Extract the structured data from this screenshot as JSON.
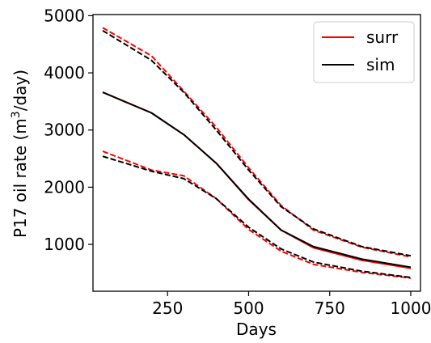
{
  "chart_data": {
    "type": "line",
    "title": "",
    "xlabel": "Days",
    "ylabel_main": "P17 oil rate (m",
    "ylabel_sup": "3",
    "ylabel_end": "/day)",
    "xlim": [
      20,
      1030
    ],
    "ylim": [
      180,
      5020
    ],
    "xticks": [
      250,
      500,
      750,
      1000
    ],
    "xtick_labels": [
      "250",
      "500",
      "750",
      "1000"
    ],
    "yticks": [
      1000,
      2000,
      3000,
      4000,
      5000
    ],
    "ytick_labels": [
      "1000",
      "2000",
      "3000",
      "4000",
      "5000"
    ],
    "grid": false,
    "legend_position": "top-right",
    "legend": [
      {
        "label": "surr",
        "color": "#ff0000"
      },
      {
        "label": "sim",
        "color": "#000000"
      }
    ],
    "series": [
      {
        "name": "surr",
        "role": "mean",
        "style": "solid",
        "color": "#ff0000",
        "x": [
          50,
          200,
          300,
          400,
          500,
          600,
          700,
          850,
          1000
        ],
        "y": [
          3660,
          3300,
          2920,
          2420,
          1780,
          1250,
          940,
          720,
          580
        ]
      },
      {
        "name": "sim",
        "role": "mean",
        "style": "solid",
        "color": "#000000",
        "x": [
          50,
          200,
          300,
          400,
          500,
          600,
          700,
          850,
          1000
        ],
        "y": [
          3660,
          3300,
          2920,
          2420,
          1790,
          1250,
          960,
          740,
          600
        ]
      },
      {
        "role": "upper",
        "style": "dashed",
        "color": "#ff0000",
        "x": [
          50,
          200,
          300,
          400,
          500,
          600,
          700,
          850,
          1000
        ],
        "y": [
          4790,
          4300,
          3680,
          3050,
          2340,
          1680,
          1250,
          950,
          780
        ]
      },
      {
        "role": "upper",
        "style": "dashed",
        "color": "#000000",
        "x": [
          50,
          200,
          300,
          400,
          500,
          600,
          700,
          850,
          1000
        ],
        "y": [
          4740,
          4220,
          3660,
          3000,
          2300,
          1660,
          1270,
          960,
          800
        ]
      },
      {
        "role": "lower",
        "style": "dashed",
        "color": "#ff0000",
        "x": [
          50,
          200,
          300,
          400,
          500,
          600,
          700,
          850,
          1000
        ],
        "y": [
          2630,
          2300,
          2200,
          1800,
          1260,
          880,
          650,
          510,
          410
        ]
      },
      {
        "role": "lower",
        "style": "dashed",
        "color": "#000000",
        "x": [
          50,
          200,
          300,
          400,
          500,
          600,
          700,
          850,
          1000
        ],
        "y": [
          2540,
          2280,
          2150,
          1800,
          1300,
          920,
          690,
          530,
          420
        ]
      }
    ]
  }
}
